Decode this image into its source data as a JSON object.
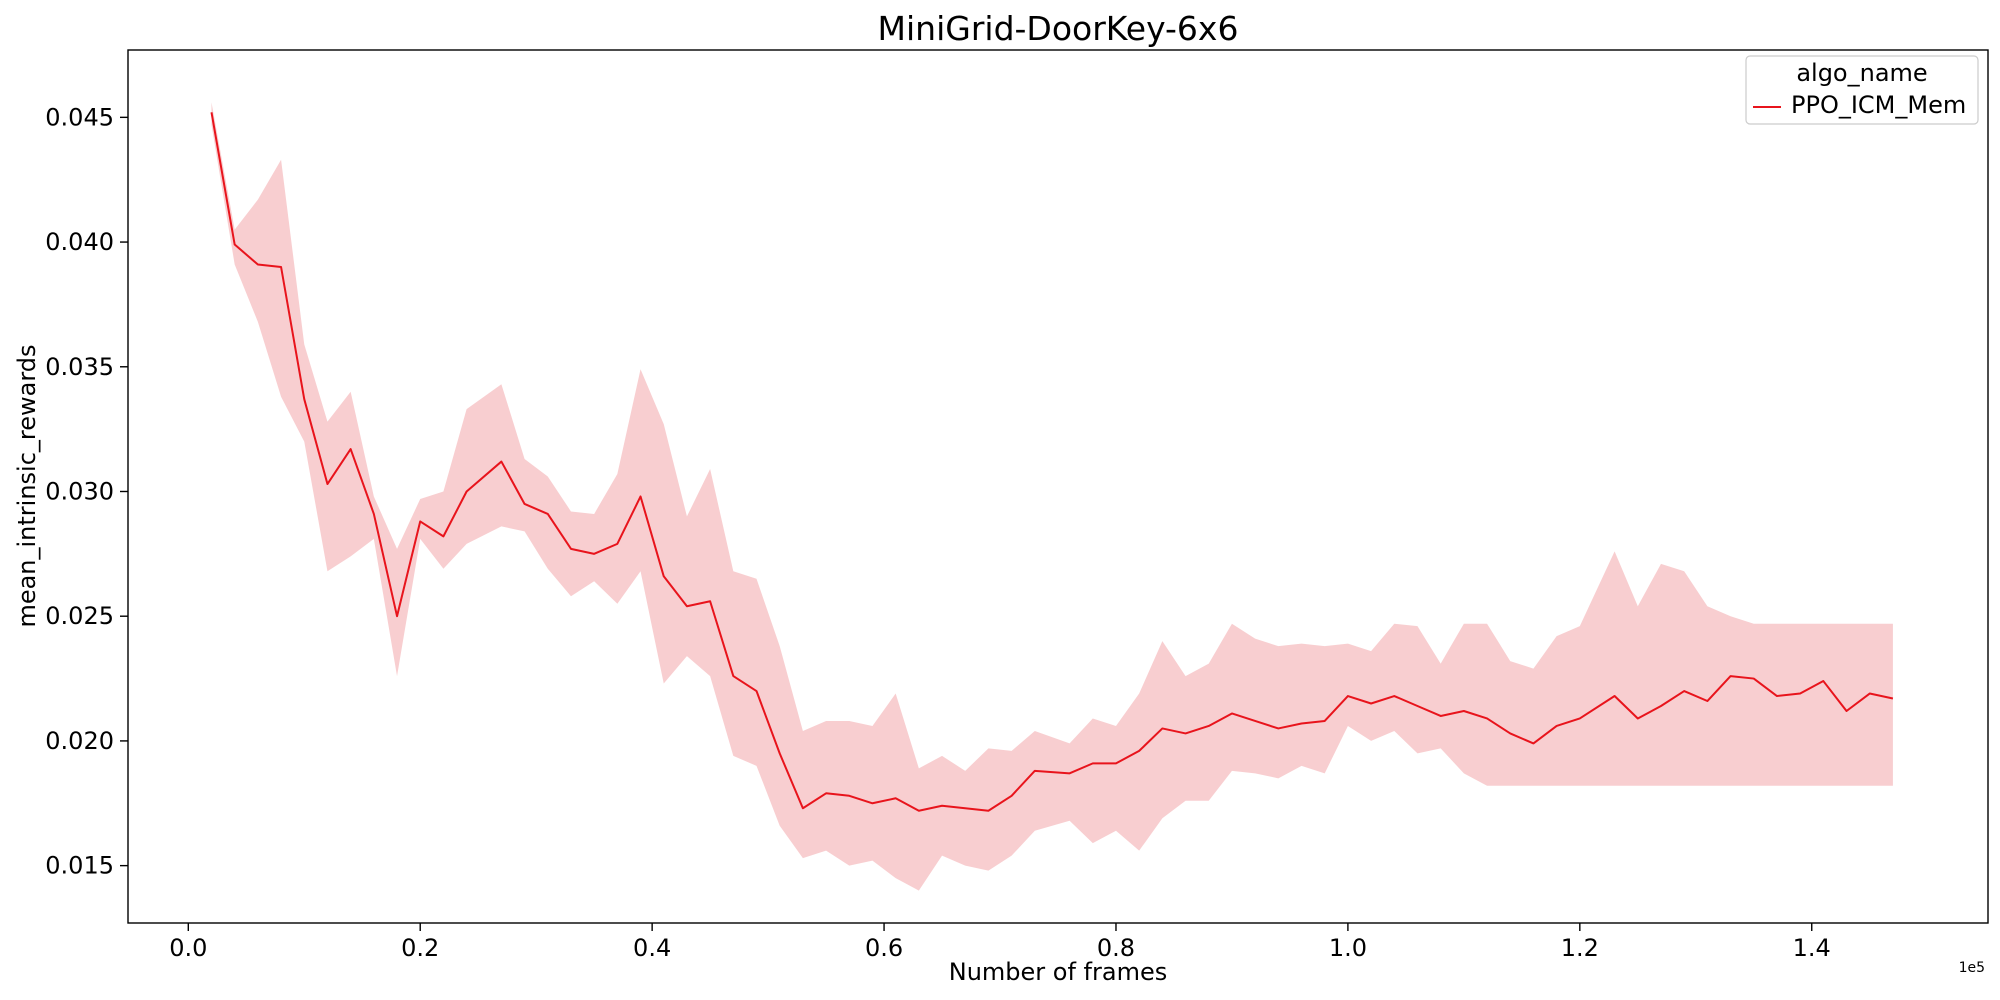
{
  "chart_data": {
    "type": "line",
    "title": "MiniGrid-DoorKey-6x6",
    "xlabel": "Number of frames",
    "ylabel": "mean_intrinsic_rewards",
    "x_offset_label": "1e5",
    "xlim": [
      -0.052,
      1.552
    ],
    "ylim": [
      0.0127,
      0.0477
    ],
    "x_ticks": [
      0.0,
      0.2,
      0.4,
      0.6,
      0.8,
      1.0,
      1.2,
      1.4
    ],
    "x_tick_labels": [
      "0.0",
      "0.2",
      "0.4",
      "0.6",
      "0.8",
      "1.0",
      "1.2",
      "1.4"
    ],
    "y_ticks": [
      0.015,
      0.02,
      0.025,
      0.03,
      0.035,
      0.04,
      0.045
    ],
    "y_tick_labels": [
      "0.015",
      "0.020",
      "0.025",
      "0.030",
      "0.035",
      "0.040",
      "0.045"
    ],
    "grid": false,
    "legend": {
      "title": "algo_name",
      "placement": "top-right"
    },
    "series": [
      {
        "name": "PPO_ICM_Mem",
        "color": "#e8141c",
        "band_color": "#f4aeb1",
        "x": [
          0.02,
          0.04,
          0.06,
          0.08,
          0.1,
          0.12,
          0.14,
          0.16,
          0.18,
          0.2,
          0.22,
          0.24,
          0.27,
          0.29,
          0.31,
          0.33,
          0.35,
          0.37,
          0.39,
          0.41,
          0.43,
          0.45,
          0.47,
          0.49,
          0.51,
          0.53,
          0.55,
          0.57,
          0.59,
          0.61,
          0.63,
          0.65,
          0.67,
          0.69,
          0.71,
          0.73,
          0.76,
          0.78,
          0.8,
          0.82,
          0.84,
          0.86,
          0.88,
          0.9,
          0.92,
          0.94,
          0.96,
          0.98,
          1.0,
          1.02,
          1.04,
          1.06,
          1.08,
          1.1,
          1.12,
          1.14,
          1.16,
          1.18,
          1.2,
          1.23,
          1.25,
          1.27,
          1.29,
          1.31,
          1.33,
          1.35,
          1.37,
          1.39,
          1.41,
          1.43,
          1.45,
          1.47
        ],
        "mean": [
          0.0452,
          0.0399,
          0.0391,
          0.039,
          0.0337,
          0.0303,
          0.0317,
          0.0291,
          0.025,
          0.0288,
          0.0282,
          0.03,
          0.0312,
          0.0295,
          0.0291,
          0.0277,
          0.0275,
          0.0279,
          0.0298,
          0.0266,
          0.0254,
          0.0256,
          0.0226,
          0.022,
          0.0195,
          0.0173,
          0.0179,
          0.0178,
          0.0175,
          0.0177,
          0.0172,
          0.0174,
          0.0173,
          0.0172,
          0.0178,
          0.0188,
          0.0187,
          0.0191,
          0.0191,
          0.0196,
          0.0205,
          0.0203,
          0.0206,
          0.0211,
          0.0208,
          0.0205,
          0.0207,
          0.0208,
          0.0218,
          0.0215,
          0.0218,
          0.0214,
          0.021,
          0.0212,
          0.0209,
          0.0203,
          0.0199,
          0.0206,
          0.0209,
          0.0218,
          0.0209,
          0.0214,
          0.022,
          0.0216,
          0.0226,
          0.0225,
          0.0218,
          0.0219,
          0.0224,
          0.0212,
          0.0219,
          0.0217
        ],
        "upper": [
          0.0456,
          0.0405,
          0.0417,
          0.0433,
          0.0359,
          0.0328,
          0.034,
          0.0298,
          0.0277,
          0.0297,
          0.03,
          0.0333,
          0.0343,
          0.0313,
          0.0306,
          0.0292,
          0.0291,
          0.0307,
          0.0349,
          0.0327,
          0.029,
          0.0309,
          0.0268,
          0.0265,
          0.0238,
          0.0204,
          0.0208,
          0.0208,
          0.0206,
          0.0219,
          0.0189,
          0.0194,
          0.0188,
          0.0197,
          0.0196,
          0.0204,
          0.0199,
          0.0209,
          0.0206,
          0.0219,
          0.024,
          0.0226,
          0.0231,
          0.0247,
          0.0241,
          0.0238,
          0.0239,
          0.0238,
          0.0239,
          0.0236,
          0.0247,
          0.0246,
          0.0231,
          0.0247,
          0.0247,
          0.0232,
          0.0229,
          0.0242,
          0.0246,
          0.0276,
          0.0254,
          0.0271,
          0.0268,
          0.0254,
          0.025,
          0.0247,
          0.0247,
          0.0247,
          0.0247,
          0.0247,
          0.0247,
          0.0247
        ],
        "lower": [
          0.0447,
          0.0391,
          0.0368,
          0.0338,
          0.032,
          0.0268,
          0.0274,
          0.0281,
          0.0226,
          0.0281,
          0.0269,
          0.0279,
          0.0286,
          0.0284,
          0.0269,
          0.0258,
          0.0264,
          0.0255,
          0.0268,
          0.0223,
          0.0234,
          0.0226,
          0.0194,
          0.019,
          0.0166,
          0.0153,
          0.0156,
          0.015,
          0.0152,
          0.0145,
          0.014,
          0.0154,
          0.015,
          0.0148,
          0.0154,
          0.0164,
          0.0168,
          0.0159,
          0.0164,
          0.0156,
          0.0169,
          0.0176,
          0.0176,
          0.0188,
          0.0187,
          0.0185,
          0.019,
          0.0187,
          0.0206,
          0.02,
          0.0204,
          0.0195,
          0.0197,
          0.0187,
          0.0182,
          0.0182,
          0.0182,
          0.0182,
          0.0182,
          0.0182,
          0.0182,
          0.0182,
          0.0182,
          0.0182,
          0.0182,
          0.0182,
          0.0182,
          0.0182,
          0.0182,
          0.0182,
          0.0182,
          0.0182
        ]
      }
    ]
  }
}
